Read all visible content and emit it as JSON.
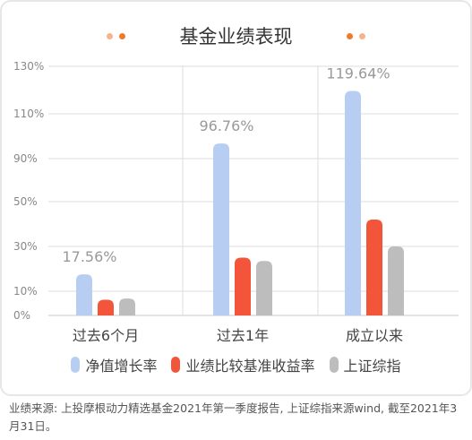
{
  "title": "基金业绩表现",
  "colors": {
    "dot_light": "#f6b48a",
    "dot_dark": "#f07a2c",
    "grid": "#dcdcdc",
    "axis_text": "#888888",
    "value_label": "#999999"
  },
  "chart_data": {
    "type": "bar",
    "title": "基金业绩表现",
    "categories": [
      "过去6个月",
      "过去1年",
      "成立以来"
    ],
    "series": [
      {
        "name": "净值增长率",
        "color": "#b8cdf2",
        "values": [
          17.56,
          96.76,
          119.64
        ]
      },
      {
        "name": "业绩比较基准收益率",
        "color": "#f2553a",
        "values": [
          6.5,
          25.0,
          42.0
        ]
      },
      {
        "name": "上证综指",
        "color": "#bdbdbd",
        "values": [
          7.0,
          23.5,
          30.0
        ]
      }
    ],
    "y_tick_labels": [
      "0%",
      "10%",
      "30%",
      "50%",
      "90%",
      "110%",
      "130%"
    ],
    "y_tick_values": [
      0,
      10,
      30,
      50,
      90,
      110,
      130
    ],
    "ylim": [
      0,
      130
    ],
    "annotations": [
      {
        "category": "过去6个月",
        "series": "净值增长率",
        "text": "17.56%"
      },
      {
        "category": "过去1年",
        "series": "净值增长率",
        "text": "96.76%"
      },
      {
        "category": "成立以来",
        "series": "净值增长率",
        "text": "119.64%"
      }
    ],
    "grid": true,
    "legend": "bottom"
  },
  "legend_items": [
    {
      "label": "净值增长率",
      "color": "#b8cdf2"
    },
    {
      "label": "业绩比较基准收益率",
      "color": "#f2553a"
    },
    {
      "label": "上证综指",
      "color": "#bdbdbd"
    }
  ],
  "footnote": "业绩来源: 上投摩根动力精选基金2021年第一季度报告, 上证综指来源wind, 截至2021年3月31日。"
}
